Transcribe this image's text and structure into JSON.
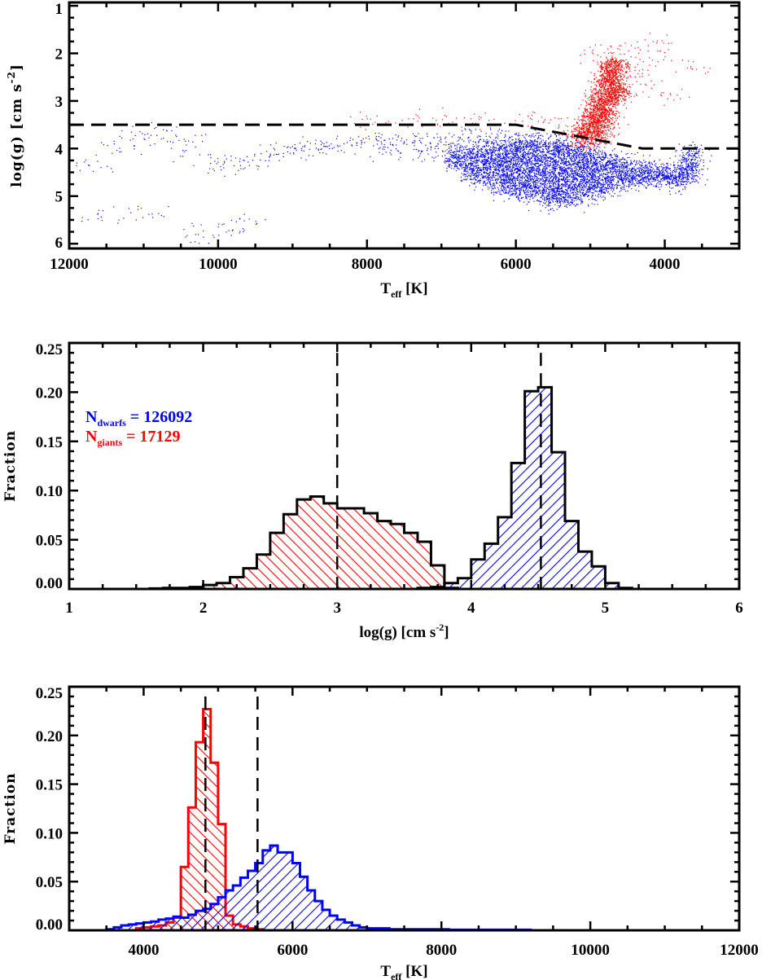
{
  "colors": {
    "dwarfs": "#0000ff",
    "giants": "#ff0000",
    "axes": "#000000"
  },
  "chart_data": [
    {
      "type": "scatter",
      "xlabel": {
        "main": "T",
        "sub": "eff",
        "rest": " [K]"
      },
      "ylabel": {
        "main": "log(g) [cm s",
        "sup": "-2",
        "rest": "]"
      },
      "xlim": [
        12000,
        3000
      ],
      "ylim": [
        6.1,
        0.93
      ],
      "x_inverted": true,
      "y_inverted": true,
      "xticks": [
        12000,
        10000,
        8000,
        6000,
        4000
      ],
      "xtick_labels": [
        "12000",
        "10000",
        "8000",
        "6000",
        "4000"
      ],
      "yticks": [
        1,
        2,
        3,
        4,
        5,
        6
      ],
      "ytick_labels": [
        "1",
        "2",
        "3",
        "4",
        "5",
        "6"
      ],
      "grid": false,
      "boundary_line": {
        "style": "dashed",
        "points": [
          [
            12000,
            3.5
          ],
          [
            6000,
            3.5
          ],
          [
            4300,
            4.0
          ],
          [
            3000,
            4.0
          ]
        ]
      },
      "series": [
        {
          "key": "dwarfs",
          "dense_points": [
            [
              6800,
              4.1
            ],
            [
              6800,
              4.3
            ],
            [
              6600,
              4.1
            ],
            [
              6600,
              4.3
            ],
            [
              6600,
              4.5
            ],
            [
              6400,
              4.0
            ],
            [
              6400,
              4.2
            ],
            [
              6400,
              4.4
            ],
            [
              6400,
              4.6
            ],
            [
              6200,
              4.0
            ],
            [
              6200,
              4.2
            ],
            [
              6200,
              4.4
            ],
            [
              6200,
              4.6
            ],
            [
              6200,
              4.8
            ],
            [
              6000,
              3.9
            ],
            [
              6000,
              4.1
            ],
            [
              6000,
              4.3
            ],
            [
              6000,
              4.5
            ],
            [
              6000,
              4.7
            ],
            [
              6000,
              4.9
            ],
            [
              5800,
              3.9
            ],
            [
              5800,
              4.1
            ],
            [
              5800,
              4.3
            ],
            [
              5800,
              4.5
            ],
            [
              5800,
              4.7
            ],
            [
              5800,
              4.9
            ],
            [
              5600,
              4.0
            ],
            [
              5600,
              4.2
            ],
            [
              5600,
              4.4
            ],
            [
              5600,
              4.6
            ],
            [
              5600,
              4.8
            ],
            [
              5600,
              5.0
            ],
            [
              5400,
              3.9
            ],
            [
              5400,
              4.1
            ],
            [
              5400,
              4.3
            ],
            [
              5400,
              4.5
            ],
            [
              5400,
              4.7
            ],
            [
              5400,
              4.9
            ],
            [
              5400,
              5.05
            ],
            [
              5200,
              4.0
            ],
            [
              5200,
              4.2
            ],
            [
              5200,
              4.4
            ],
            [
              5200,
              4.6
            ],
            [
              5200,
              4.8
            ],
            [
              5200,
              5.0
            ],
            [
              5000,
              4.1
            ],
            [
              5000,
              4.3
            ],
            [
              5000,
              4.5
            ],
            [
              5000,
              4.7
            ],
            [
              5000,
              4.9
            ],
            [
              4800,
              4.2
            ],
            [
              4800,
              4.4
            ],
            [
              4800,
              4.6
            ],
            [
              4800,
              4.8
            ],
            [
              4600,
              4.3
            ],
            [
              4600,
              4.5
            ],
            [
              4600,
              4.7
            ],
            [
              4400,
              4.4
            ],
            [
              4400,
              4.6
            ],
            [
              4200,
              4.45
            ],
            [
              4200,
              4.65
            ],
            [
              4000,
              4.5
            ],
            [
              4000,
              4.6
            ],
            [
              3800,
              4.5
            ],
            [
              3800,
              4.65
            ],
            [
              3650,
              4.1
            ],
            [
              3650,
              4.3
            ],
            [
              3650,
              4.5
            ]
          ],
          "sparse_points": [
            [
              11700,
              4.35
            ],
            [
              11400,
              4.0
            ],
            [
              11100,
              3.75
            ],
            [
              10800,
              3.65
            ],
            [
              10500,
              3.8
            ],
            [
              10300,
              4.05
            ],
            [
              10000,
              4.3
            ],
            [
              9800,
              4.4
            ],
            [
              9600,
              4.25
            ],
            [
              9400,
              4.15
            ],
            [
              9200,
              4.05
            ],
            [
              9000,
              4.0
            ],
            [
              8800,
              4.0
            ],
            [
              8600,
              3.95
            ],
            [
              8400,
              3.95
            ],
            [
              8200,
              3.9
            ],
            [
              8000,
              3.85
            ],
            [
              7800,
              3.85
            ],
            [
              7600,
              3.8
            ],
            [
              7400,
              3.8
            ],
            [
              7200,
              3.85
            ],
            [
              7000,
              3.9
            ],
            [
              7800,
              4.05
            ],
            [
              7500,
              4.0
            ],
            [
              7300,
              4.1
            ],
            [
              7100,
              4.05
            ],
            [
              6900,
              4.1
            ],
            [
              6800,
              3.8
            ],
            [
              6600,
              3.75
            ],
            [
              6400,
              3.7
            ],
            [
              6200,
              3.7
            ],
            [
              6000,
              3.7
            ],
            [
              5800,
              3.8
            ],
            [
              11600,
              5.4
            ],
            [
              11000,
              5.3
            ],
            [
              10300,
              5.8
            ],
            [
              9900,
              5.7
            ],
            [
              9600,
              5.5
            ]
          ]
        },
        {
          "key": "giants",
          "dense_points": [
            [
              4900,
              3.75
            ],
            [
              4850,
              3.5
            ],
            [
              4800,
              3.25
            ],
            [
              4750,
              3.0
            ],
            [
              4700,
              2.75
            ],
            [
              4700,
              2.5
            ],
            [
              4650,
              2.25
            ],
            [
              4800,
              2.6
            ],
            [
              4850,
              2.9
            ],
            [
              4950,
              3.3
            ],
            [
              5050,
              3.6
            ],
            [
              5150,
              3.75
            ],
            [
              4600,
              2.8
            ],
            [
              4750,
              2.3
            ],
            [
              4900,
              3.1
            ],
            [
              5000,
              3.45
            ]
          ],
          "sparse_points": [
            [
              5500,
              3.45
            ],
            [
              5800,
              3.4
            ],
            [
              6500,
              3.4
            ],
            [
              7000,
              3.35
            ],
            [
              7500,
              3.4
            ],
            [
              8000,
              3.45
            ],
            [
              4400,
              2.3
            ],
            [
              4200,
              2.0
            ],
            [
              4100,
              1.8
            ],
            [
              4300,
              2.6
            ],
            [
              4000,
              2.9
            ],
            [
              3600,
              2.3
            ],
            [
              4600,
              1.9
            ],
            [
              4900,
              2.0
            ]
          ]
        }
      ]
    },
    {
      "type": "bar",
      "histogram": true,
      "xlabel": {
        "main": "log(g) [cm s",
        "sup": "-2",
        "rest": "]"
      },
      "ylabel": "Fraction",
      "xlim": [
        1,
        6
      ],
      "ylim": [
        0,
        0.25
      ],
      "xticks": [
        1,
        2,
        3,
        4,
        5,
        6
      ],
      "xtick_labels": [
        "1",
        "2",
        "3",
        "4",
        "5",
        "6"
      ],
      "yticks": [
        0,
        0.05,
        0.1,
        0.15,
        0.2,
        0.25
      ],
      "ytick_labels": [
        "0.00",
        "0.05",
        "0.10",
        "0.15",
        "0.20",
        "0.25"
      ],
      "grid": false,
      "legend": [
        {
          "key": "dwarfs",
          "label_main": "N",
          "label_sub": "dwarfs",
          "label_rest": " = 126092"
        },
        {
          "key": "giants",
          "label_main": "N",
          "label_sub": "giants",
          "label_rest": " = 17129"
        }
      ],
      "legend_position": "upper-left",
      "medians": [
        {
          "key": "giants",
          "x": 3.0
        },
        {
          "key": "dwarfs",
          "x": 4.52
        }
      ],
      "series": [
        {
          "key": "giants",
          "bin_start": 1.6,
          "bin_width": 0.1,
          "hatch": "backslash",
          "outline": "#000000",
          "values": [
            0.0005,
            0.001,
            0.001,
            0.002,
            0.004,
            0.006,
            0.012,
            0.021,
            0.035,
            0.057,
            0.076,
            0.091,
            0.094,
            0.087,
            0.082,
            0.082,
            0.077,
            0.069,
            0.066,
            0.057,
            0.048,
            0.024,
            0.001
          ]
        },
        {
          "key": "dwarfs",
          "bin_start": 3.6,
          "bin_width": 0.1,
          "hatch": "slash",
          "outline": "#000000",
          "values": [
            0.001,
            0.002,
            0.006,
            0.011,
            0.03,
            0.046,
            0.073,
            0.128,
            0.201,
            0.205,
            0.139,
            0.069,
            0.038,
            0.023,
            0.006,
            0.001
          ]
        }
      ]
    },
    {
      "type": "bar",
      "histogram": true,
      "xlabel": {
        "main": "T",
        "sub": "eff",
        "rest": " [K]"
      },
      "ylabel": "Fraction",
      "xlim": [
        3000,
        12000
      ],
      "ylim": [
        0,
        0.25
      ],
      "xticks": [
        4000,
        6000,
        8000,
        10000,
        12000
      ],
      "xtick_labels": [
        "4000",
        "6000",
        "8000",
        "10000",
        "12000"
      ],
      "yticks": [
        0,
        0.05,
        0.1,
        0.15,
        0.2,
        0.25
      ],
      "ytick_labels": [
        "0.00",
        "0.05",
        "0.10",
        "0.15",
        "0.20",
        "0.25"
      ],
      "grid": false,
      "medians": [
        {
          "key": "giants",
          "x": 4830
        },
        {
          "key": "dwarfs",
          "x": 5530
        }
      ],
      "series": [
        {
          "key": "giants",
          "bin_start": 3900,
          "bin_width": 100,
          "hatch": "backslash",
          "outline": "#ff0000",
          "values": [
            0.002,
            0.003,
            0.004,
            0.005,
            0.008,
            0.013,
            0.065,
            0.126,
            0.193,
            0.227,
            0.172,
            0.109,
            0.015,
            0.006,
            0.004,
            0.002,
            0.001
          ]
        },
        {
          "key": "dwarfs",
          "bin_start": 3500,
          "bin_width": 100,
          "hatch": "slash",
          "outline": "#0000ff",
          "values": [
            0.001,
            0.003,
            0.005,
            0.006,
            0.007,
            0.008,
            0.009,
            0.011,
            0.012,
            0.014,
            0.013,
            0.016,
            0.02,
            0.022,
            0.027,
            0.034,
            0.041,
            0.046,
            0.054,
            0.061,
            0.069,
            0.082,
            0.087,
            0.08,
            0.08,
            0.069,
            0.055,
            0.041,
            0.03,
            0.021,
            0.015,
            0.011,
            0.008,
            0.005,
            0.003,
            0.002,
            0.002,
            0.002,
            0.001,
            0.001,
            0.001,
            0.001,
            0.001,
            0.001,
            0.001,
            0.001,
            0.0005,
            0.0005,
            0.0005,
            0.0005,
            0.0005,
            0.0005,
            0.0005,
            0.0005,
            0.0005,
            0.0005,
            0.0005
          ]
        }
      ]
    }
  ]
}
